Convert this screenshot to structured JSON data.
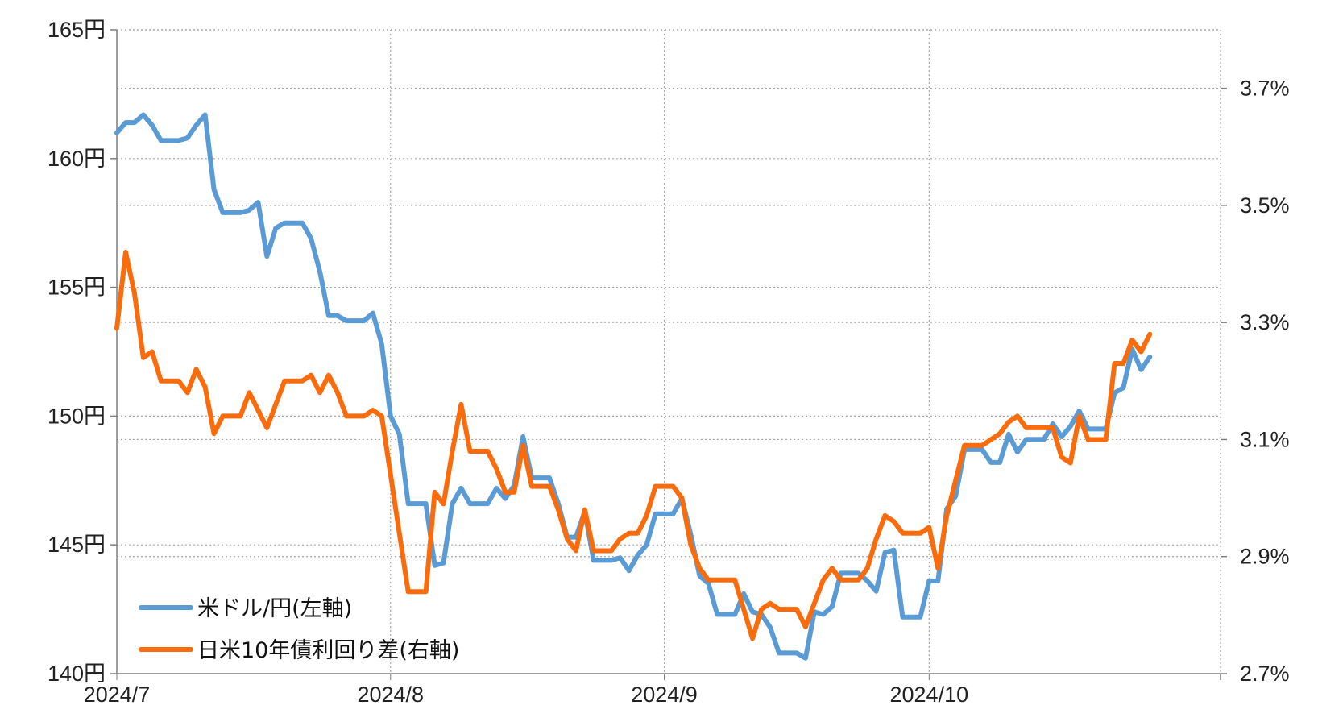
{
  "chart_data": {
    "type": "line",
    "title": "",
    "xlabel": "",
    "ylabel": "",
    "y_left": {
      "ticks": [
        140,
        145,
        150,
        155,
        160,
        165
      ],
      "tick_labels": [
        "140円",
        "145円",
        "150円",
        "155円",
        "160円",
        "165円"
      ],
      "ylim": [
        140,
        165
      ]
    },
    "y_right": {
      "ticks": [
        2.7,
        2.9,
        3.1,
        3.3,
        3.5,
        3.7
      ],
      "tick_labels": [
        "2.7%",
        "2.9%",
        "3.1%",
        "3.3%",
        "3.5%",
        "3.7%"
      ],
      "ylim": [
        2.7,
        3.8
      ]
    },
    "x_axis": {
      "tick_dates": [
        "2024-07-01",
        "2024-08-01",
        "2024-09-01",
        "2024-10-01"
      ],
      "tick_labels": [
        "2024/7",
        "2024/8",
        "2024/9",
        "2024/10"
      ],
      "xlim": [
        "2024-07-01",
        "2024-11-03"
      ]
    },
    "grid": true,
    "legend_position": "bottom-left",
    "series": [
      {
        "name": "米ドル/円(左軸)",
        "axis": "left",
        "color": "#5b9bd5",
        "points": [
          [
            "2024-07-01",
            161.0
          ],
          [
            "2024-07-02",
            161.4
          ],
          [
            "2024-07-03",
            161.4
          ],
          [
            "2024-07-04",
            161.7
          ],
          [
            "2024-07-05",
            161.3
          ],
          [
            "2024-07-06",
            160.7
          ],
          [
            "2024-07-07",
            160.7
          ],
          [
            "2024-07-08",
            160.7
          ],
          [
            "2024-07-09",
            160.8
          ],
          [
            "2024-07-10",
            161.3
          ],
          [
            "2024-07-11",
            161.7
          ],
          [
            "2024-07-12",
            158.8
          ],
          [
            "2024-07-13",
            157.9
          ],
          [
            "2024-07-14",
            157.9
          ],
          [
            "2024-07-15",
            157.9
          ],
          [
            "2024-07-16",
            158.0
          ],
          [
            "2024-07-17",
            158.3
          ],
          [
            "2024-07-18",
            156.2
          ],
          [
            "2024-07-19",
            157.3
          ],
          [
            "2024-07-20",
            157.5
          ],
          [
            "2024-07-21",
            157.5
          ],
          [
            "2024-07-22",
            157.5
          ],
          [
            "2024-07-23",
            156.9
          ],
          [
            "2024-07-24",
            155.6
          ],
          [
            "2024-07-25",
            153.9
          ],
          [
            "2024-07-26",
            153.9
          ],
          [
            "2024-07-27",
            153.7
          ],
          [
            "2024-07-28",
            153.7
          ],
          [
            "2024-07-29",
            153.7
          ],
          [
            "2024-07-30",
            154.0
          ],
          [
            "2024-07-31",
            152.8
          ],
          [
            "2024-08-01",
            150.0
          ],
          [
            "2024-08-02",
            149.3
          ],
          [
            "2024-08-03",
            146.6
          ],
          [
            "2024-08-04",
            146.6
          ],
          [
            "2024-08-05",
            146.6
          ],
          [
            "2024-08-06",
            144.2
          ],
          [
            "2024-08-07",
            144.3
          ],
          [
            "2024-08-08",
            146.6
          ],
          [
            "2024-08-09",
            147.2
          ],
          [
            "2024-08-10",
            146.6
          ],
          [
            "2024-08-11",
            146.6
          ],
          [
            "2024-08-12",
            146.6
          ],
          [
            "2024-08-13",
            147.2
          ],
          [
            "2024-08-14",
            146.8
          ],
          [
            "2024-08-15",
            147.3
          ],
          [
            "2024-08-16",
            149.2
          ],
          [
            "2024-08-17",
            147.6
          ],
          [
            "2024-08-18",
            147.6
          ],
          [
            "2024-08-19",
            147.6
          ],
          [
            "2024-08-20",
            146.6
          ],
          [
            "2024-08-21",
            145.3
          ],
          [
            "2024-08-22",
            145.3
          ],
          [
            "2024-08-23",
            146.3
          ],
          [
            "2024-08-24",
            144.4
          ],
          [
            "2024-08-25",
            144.4
          ],
          [
            "2024-08-26",
            144.4
          ],
          [
            "2024-08-27",
            144.5
          ],
          [
            "2024-08-28",
            144.0
          ],
          [
            "2024-08-29",
            144.6
          ],
          [
            "2024-08-30",
            145.0
          ],
          [
            "2024-08-31",
            146.2
          ],
          [
            "2024-09-01",
            146.2
          ],
          [
            "2024-09-02",
            146.2
          ],
          [
            "2024-09-03",
            146.8
          ],
          [
            "2024-09-04",
            145.4
          ],
          [
            "2024-09-05",
            143.8
          ],
          [
            "2024-09-06",
            143.5
          ],
          [
            "2024-09-07",
            142.3
          ],
          [
            "2024-09-08",
            142.3
          ],
          [
            "2024-09-09",
            142.3
          ],
          [
            "2024-09-10",
            143.1
          ],
          [
            "2024-09-11",
            142.4
          ],
          [
            "2024-09-12",
            142.3
          ],
          [
            "2024-09-13",
            141.8
          ],
          [
            "2024-09-14",
            140.8
          ],
          [
            "2024-09-15",
            140.8
          ],
          [
            "2024-09-16",
            140.8
          ],
          [
            "2024-09-17",
            140.6
          ],
          [
            "2024-09-18",
            142.4
          ],
          [
            "2024-09-19",
            142.3
          ],
          [
            "2024-09-20",
            142.6
          ],
          [
            "2024-09-21",
            143.9
          ],
          [
            "2024-09-22",
            143.9
          ],
          [
            "2024-09-23",
            143.9
          ],
          [
            "2024-09-24",
            143.6
          ],
          [
            "2024-09-25",
            143.2
          ],
          [
            "2024-09-26",
            144.7
          ],
          [
            "2024-09-27",
            144.8
          ],
          [
            "2024-09-28",
            142.2
          ],
          [
            "2024-09-29",
            142.2
          ],
          [
            "2024-09-30",
            142.2
          ],
          [
            "2024-10-01",
            143.6
          ],
          [
            "2024-10-02",
            143.6
          ],
          [
            "2024-10-03",
            146.4
          ],
          [
            "2024-10-04",
            146.9
          ],
          [
            "2024-10-05",
            148.7
          ],
          [
            "2024-10-06",
            148.7
          ],
          [
            "2024-10-07",
            148.7
          ],
          [
            "2024-10-08",
            148.2
          ],
          [
            "2024-10-09",
            148.2
          ],
          [
            "2024-10-10",
            149.3
          ],
          [
            "2024-10-11",
            148.6
          ],
          [
            "2024-10-12",
            149.1
          ],
          [
            "2024-10-13",
            149.1
          ],
          [
            "2024-10-14",
            149.1
          ],
          [
            "2024-10-15",
            149.7
          ],
          [
            "2024-10-16",
            149.2
          ],
          [
            "2024-10-17",
            149.6
          ],
          [
            "2024-10-18",
            150.2
          ],
          [
            "2024-10-19",
            149.5
          ],
          [
            "2024-10-20",
            149.5
          ],
          [
            "2024-10-21",
            149.5
          ],
          [
            "2024-10-22",
            150.9
          ],
          [
            "2024-10-23",
            151.1
          ],
          [
            "2024-10-24",
            152.6
          ],
          [
            "2024-10-25",
            151.8
          ],
          [
            "2024-10-26",
            152.3
          ]
        ]
      },
      {
        "name": "日米10年債利回り差(右軸)",
        "axis": "right",
        "color": "#fa6b0c",
        "points": [
          [
            "2024-07-01",
            3.29
          ],
          [
            "2024-07-02",
            3.42
          ],
          [
            "2024-07-03",
            3.35
          ],
          [
            "2024-07-04",
            3.24
          ],
          [
            "2024-07-05",
            3.25
          ],
          [
            "2024-07-06",
            3.2
          ],
          [
            "2024-07-07",
            3.2
          ],
          [
            "2024-07-08",
            3.2
          ],
          [
            "2024-07-09",
            3.18
          ],
          [
            "2024-07-10",
            3.22
          ],
          [
            "2024-07-11",
            3.19
          ],
          [
            "2024-07-12",
            3.11
          ],
          [
            "2024-07-13",
            3.14
          ],
          [
            "2024-07-14",
            3.14
          ],
          [
            "2024-07-15",
            3.14
          ],
          [
            "2024-07-16",
            3.18
          ],
          [
            "2024-07-17",
            3.15
          ],
          [
            "2024-07-18",
            3.12
          ],
          [
            "2024-07-19",
            3.16
          ],
          [
            "2024-07-20",
            3.2
          ],
          [
            "2024-07-21",
            3.2
          ],
          [
            "2024-07-22",
            3.2
          ],
          [
            "2024-07-23",
            3.21
          ],
          [
            "2024-07-24",
            3.18
          ],
          [
            "2024-07-25",
            3.21
          ],
          [
            "2024-07-26",
            3.18
          ],
          [
            "2024-07-27",
            3.14
          ],
          [
            "2024-07-28",
            3.14
          ],
          [
            "2024-07-29",
            3.14
          ],
          [
            "2024-07-30",
            3.15
          ],
          [
            "2024-07-31",
            3.14
          ],
          [
            "2024-08-01",
            3.04
          ],
          [
            "2024-08-02",
            2.94
          ],
          [
            "2024-08-03",
            2.84
          ],
          [
            "2024-08-04",
            2.84
          ],
          [
            "2024-08-05",
            2.84
          ],
          [
            "2024-08-06",
            3.01
          ],
          [
            "2024-08-07",
            2.99
          ],
          [
            "2024-08-08",
            3.08
          ],
          [
            "2024-08-09",
            3.16
          ],
          [
            "2024-08-10",
            3.08
          ],
          [
            "2024-08-11",
            3.08
          ],
          [
            "2024-08-12",
            3.08
          ],
          [
            "2024-08-13",
            3.05
          ],
          [
            "2024-08-14",
            3.01
          ],
          [
            "2024-08-15",
            3.01
          ],
          [
            "2024-08-16",
            3.09
          ],
          [
            "2024-08-17",
            3.02
          ],
          [
            "2024-08-18",
            3.02
          ],
          [
            "2024-08-19",
            3.02
          ],
          [
            "2024-08-20",
            2.98
          ],
          [
            "2024-08-21",
            2.93
          ],
          [
            "2024-08-22",
            2.91
          ],
          [
            "2024-08-23",
            2.98
          ],
          [
            "2024-08-24",
            2.91
          ],
          [
            "2024-08-25",
            2.91
          ],
          [
            "2024-08-26",
            2.91
          ],
          [
            "2024-08-27",
            2.93
          ],
          [
            "2024-08-28",
            2.94
          ],
          [
            "2024-08-29",
            2.94
          ],
          [
            "2024-08-30",
            2.97
          ],
          [
            "2024-08-31",
            3.02
          ],
          [
            "2024-09-01",
            3.02
          ],
          [
            "2024-09-02",
            3.02
          ],
          [
            "2024-09-03",
            3.0
          ],
          [
            "2024-09-04",
            2.92
          ],
          [
            "2024-09-05",
            2.88
          ],
          [
            "2024-09-06",
            2.86
          ],
          [
            "2024-09-07",
            2.86
          ],
          [
            "2024-09-08",
            2.86
          ],
          [
            "2024-09-09",
            2.86
          ],
          [
            "2024-09-10",
            2.81
          ],
          [
            "2024-09-11",
            2.76
          ],
          [
            "2024-09-12",
            2.81
          ],
          [
            "2024-09-13",
            2.82
          ],
          [
            "2024-09-14",
            2.81
          ],
          [
            "2024-09-15",
            2.81
          ],
          [
            "2024-09-16",
            2.81
          ],
          [
            "2024-09-17",
            2.78
          ],
          [
            "2024-09-18",
            2.82
          ],
          [
            "2024-09-19",
            2.86
          ],
          [
            "2024-09-20",
            2.88
          ],
          [
            "2024-09-21",
            2.86
          ],
          [
            "2024-09-22",
            2.86
          ],
          [
            "2024-09-23",
            2.86
          ],
          [
            "2024-09-24",
            2.88
          ],
          [
            "2024-09-25",
            2.93
          ],
          [
            "2024-09-26",
            2.97
          ],
          [
            "2024-09-27",
            2.96
          ],
          [
            "2024-09-28",
            2.94
          ],
          [
            "2024-09-29",
            2.94
          ],
          [
            "2024-09-30",
            2.94
          ],
          [
            "2024-10-01",
            2.95
          ],
          [
            "2024-10-02",
            2.88
          ],
          [
            "2024-10-03",
            2.97
          ],
          [
            "2024-10-04",
            3.03
          ],
          [
            "2024-10-05",
            3.09
          ],
          [
            "2024-10-06",
            3.09
          ],
          [
            "2024-10-07",
            3.09
          ],
          [
            "2024-10-08",
            3.1
          ],
          [
            "2024-10-09",
            3.11
          ],
          [
            "2024-10-10",
            3.13
          ],
          [
            "2024-10-11",
            3.14
          ],
          [
            "2024-10-12",
            3.12
          ],
          [
            "2024-10-13",
            3.12
          ],
          [
            "2024-10-14",
            3.12
          ],
          [
            "2024-10-15",
            3.12
          ],
          [
            "2024-10-16",
            3.07
          ],
          [
            "2024-10-17",
            3.06
          ],
          [
            "2024-10-18",
            3.14
          ],
          [
            "2024-10-19",
            3.1
          ],
          [
            "2024-10-20",
            3.1
          ],
          [
            "2024-10-21",
            3.1
          ],
          [
            "2024-10-22",
            3.23
          ],
          [
            "2024-10-23",
            3.23
          ],
          [
            "2024-10-24",
            3.27
          ],
          [
            "2024-10-25",
            3.25
          ],
          [
            "2024-10-26",
            3.28
          ]
        ]
      }
    ]
  }
}
